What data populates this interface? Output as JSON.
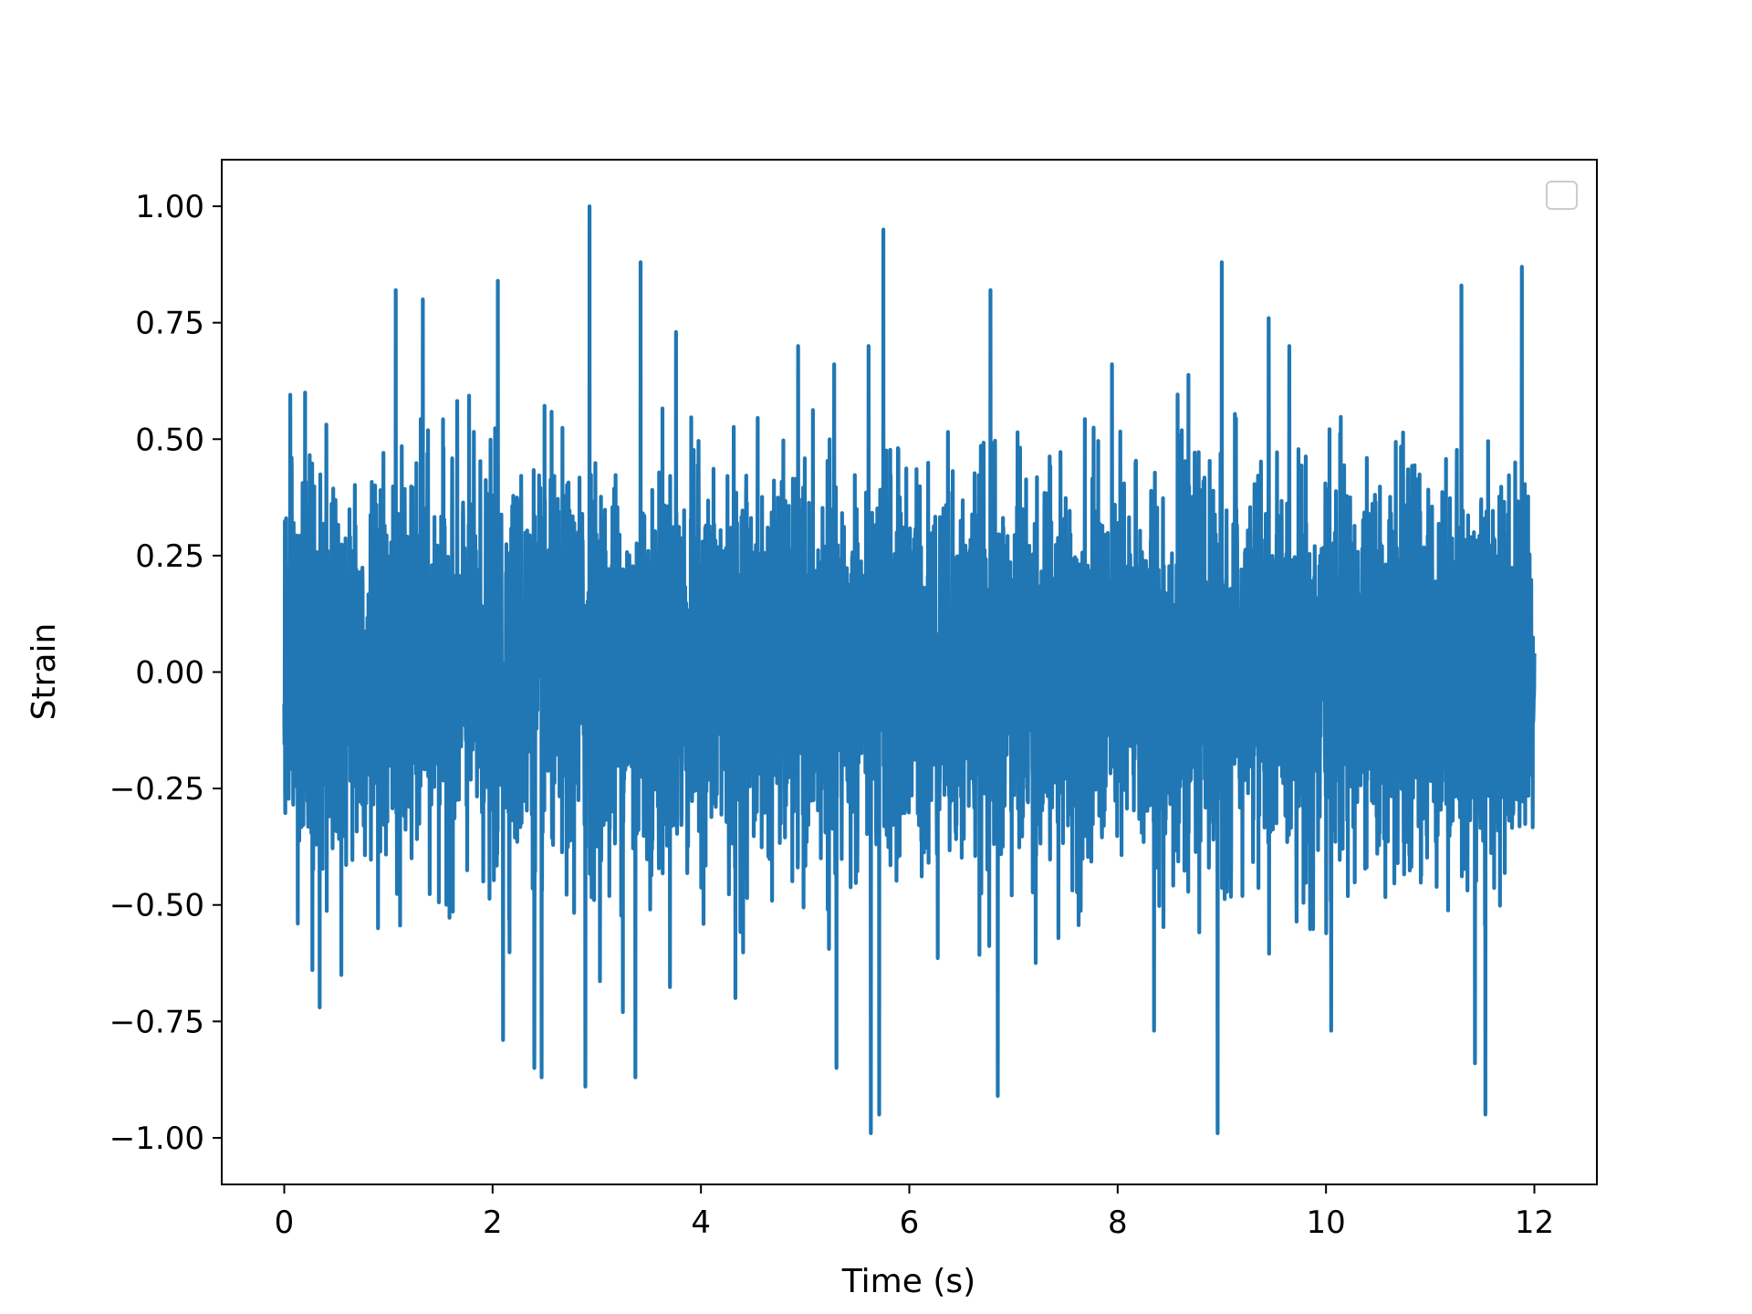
{
  "chart_data": {
    "type": "line",
    "title": "",
    "xlabel": "Time (s)",
    "ylabel": "Strain",
    "xlim": [
      -0.6,
      12.6
    ],
    "ylim": [
      -1.1,
      1.1
    ],
    "x_ticks": [
      0,
      2,
      4,
      6,
      8,
      10,
      12
    ],
    "x_tick_labels": [
      "0",
      "2",
      "4",
      "6",
      "8",
      "10",
      "12"
    ],
    "y_ticks": [
      1.0,
      0.75,
      0.5,
      0.25,
      0.0,
      -0.25,
      -0.5,
      -0.75,
      -1.0
    ],
    "y_tick_labels": [
      "1.00",
      "0.75",
      "0.50",
      "0.25",
      "0.00",
      "−0.25",
      "−0.50",
      "−0.75",
      "−1.00"
    ],
    "grid": false,
    "legend": {
      "placement": "top-right",
      "entries": []
    },
    "series": [
      {
        "color": "#2077b4",
        "description_of_signal": "dense noise signal sampled over 0 to 12 s, amplitude mostly within ±0.6 with spikes up to ±1.0",
        "x_range": [
          0,
          12
        ],
        "sample_count": 6000,
        "peaks": [
          {
            "x": 0.07,
            "y": 0.46
          },
          {
            "x": 0.13,
            "y": -0.54
          },
          {
            "x": 0.2,
            "y": 0.6
          },
          {
            "x": 0.27,
            "y": -0.64
          },
          {
            "x": 0.34,
            "y": -0.72
          },
          {
            "x": 0.9,
            "y": -0.55
          },
          {
            "x": 1.07,
            "y": 0.82
          },
          {
            "x": 1.33,
            "y": 0.8
          },
          {
            "x": 2.05,
            "y": 0.84
          },
          {
            "x": 2.1,
            "y": -0.79
          },
          {
            "x": 2.4,
            "y": -0.85
          },
          {
            "x": 2.47,
            "y": -0.87
          },
          {
            "x": 2.89,
            "y": -0.89
          },
          {
            "x": 2.93,
            "y": 1.0
          },
          {
            "x": 3.25,
            "y": -0.73
          },
          {
            "x": 3.37,
            "y": -0.87
          },
          {
            "x": 3.42,
            "y": 0.88
          },
          {
            "x": 3.76,
            "y": 0.73
          },
          {
            "x": 4.33,
            "y": -0.7
          },
          {
            "x": 5.3,
            "y": -0.85
          },
          {
            "x": 5.63,
            "y": -0.99
          },
          {
            "x": 5.71,
            "y": -0.95
          },
          {
            "x": 5.75,
            "y": 0.95
          },
          {
            "x": 6.78,
            "y": 0.82
          },
          {
            "x": 6.85,
            "y": -0.91
          },
          {
            "x": 8.35,
            "y": -0.77
          },
          {
            "x": 8.96,
            "y": -0.99
          },
          {
            "x": 9.0,
            "y": 0.88
          },
          {
            "x": 9.45,
            "y": 0.76
          },
          {
            "x": 10.05,
            "y": -0.77
          },
          {
            "x": 11.3,
            "y": 0.83
          },
          {
            "x": 11.43,
            "y": -0.84
          },
          {
            "x": 11.53,
            "y": -0.95
          },
          {
            "x": 11.88,
            "y": 0.87
          }
        ]
      }
    ]
  }
}
